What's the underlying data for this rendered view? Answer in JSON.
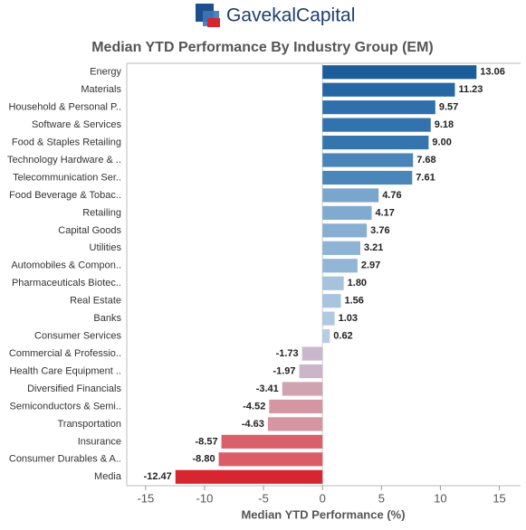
{
  "logo": "GavekalCapital",
  "chart_data": {
    "type": "hbar",
    "title": "Median YTD Performance By Industry Group (EM)",
    "x_label": "Median YTD Performance (%)",
    "categories": [
      "Energy",
      "Materials",
      "Household & Personal P..",
      "Software & Services",
      "Food & Staples Retailing",
      "Technology Hardware & ..",
      "Telecommunication Ser..",
      "Food Beverage & Tobac..",
      "Retailing",
      "Capital Goods",
      "Utilities",
      "Automobiles & Compon..",
      "Pharmaceuticals Biotec..",
      "Real Estate",
      "Banks",
      "Consumer Services",
      "Commercial & Professio..",
      "Health Care Equipment ..",
      "Diversified Financials",
      "Semiconductors & Semi..",
      "Transportation",
      "Insurance",
      "Consumer Durables & A..",
      "Media"
    ],
    "values": [
      13.06,
      11.23,
      9.57,
      9.18,
      9.0,
      7.68,
      7.61,
      4.76,
      4.17,
      3.76,
      3.21,
      2.97,
      1.8,
      1.56,
      1.03,
      0.62,
      -1.73,
      -1.97,
      -3.41,
      -4.52,
      -4.63,
      -8.57,
      -8.8,
      -12.47
    ],
    "value_labels": [
      "13.06",
      "11.23",
      "9.57",
      "9.18",
      "9.00",
      "7.68",
      "7.61",
      "4.76",
      "4.17",
      "3.76",
      "3.21",
      "2.97",
      "1.80",
      "1.56",
      "1.03",
      "0.62",
      "-1.73",
      "-1.97",
      "-3.41",
      "-4.52",
      "-4.63",
      "-8.57",
      "-8.80",
      "-12.47"
    ],
    "colors": [
      "#1c5d99",
      "#2566a3",
      "#2f6fab",
      "#3373ad",
      "#3575ae",
      "#4a85b9",
      "#4b86ba",
      "#7aa5cc",
      "#81aad0",
      "#88aed2",
      "#8fb3d5",
      "#94b6d6",
      "#a6c2dd",
      "#a9c4de",
      "#b0c9e1",
      "#b7cde3",
      "#c9b8cc",
      "#cbb6c9",
      "#cfa3b0",
      "#d496a3",
      "#d595a2",
      "#d9606a",
      "#da5c66",
      "#d7262f"
    ],
    "xlim": [
      -16.6,
      16.8
    ],
    "xticks": [
      -15,
      -10,
      -5,
      0,
      5,
      10,
      15
    ]
  }
}
